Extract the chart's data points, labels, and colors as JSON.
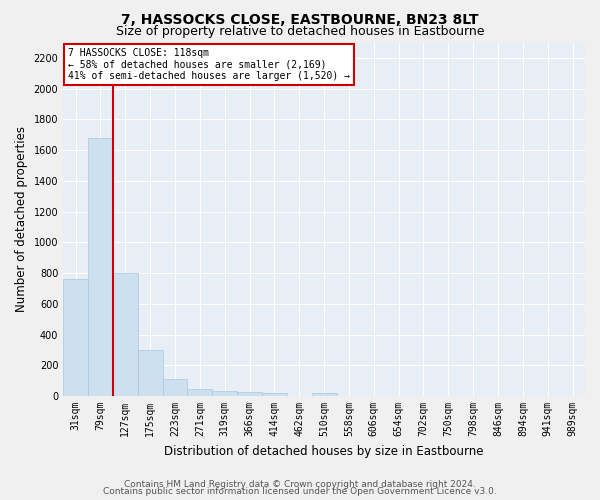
{
  "title": "7, HASSOCKS CLOSE, EASTBOURNE, BN23 8LT",
  "subtitle": "Size of property relative to detached houses in Eastbourne",
  "xlabel": "Distribution of detached houses by size in Eastbourne",
  "ylabel": "Number of detached properties",
  "categories": [
    "31sqm",
    "79sqm",
    "127sqm",
    "175sqm",
    "223sqm",
    "271sqm",
    "319sqm",
    "366sqm",
    "414sqm",
    "462sqm",
    "510sqm",
    "558sqm",
    "606sqm",
    "654sqm",
    "702sqm",
    "750sqm",
    "798sqm",
    "846sqm",
    "894sqm",
    "941sqm",
    "989sqm"
  ],
  "values": [
    760,
    1680,
    800,
    300,
    110,
    45,
    32,
    25,
    20,
    0,
    22,
    0,
    0,
    0,
    0,
    0,
    0,
    0,
    0,
    0,
    0
  ],
  "bar_color": "#cce0f0",
  "bar_edge_color": "#a8c8e0",
  "line_color": "#cc0000",
  "annotation_title": "7 HASSOCKS CLOSE: 118sqm",
  "annotation_line1": "← 58% of detached houses are smaller (2,169)",
  "annotation_line2": "41% of semi-detached houses are larger (1,520) →",
  "annotation_box_color": "#ffffff",
  "annotation_box_edge": "#cc0000",
  "ylim": [
    0,
    2300
  ],
  "yticks": [
    0,
    200,
    400,
    600,
    800,
    1000,
    1200,
    1400,
    1600,
    1800,
    2000,
    2200
  ],
  "footer1": "Contains HM Land Registry data © Crown copyright and database right 2024.",
  "footer2": "Contains public sector information licensed under the Open Government Licence v3.0.",
  "fig_bg_color": "#f0f0f0",
  "plot_bg_color": "#e8eef6",
  "grid_color": "#ffffff",
  "title_fontsize": 10,
  "subtitle_fontsize": 9,
  "tick_fontsize": 7,
  "ylabel_fontsize": 8.5,
  "xlabel_fontsize": 8.5,
  "footer_fontsize": 6.5
}
